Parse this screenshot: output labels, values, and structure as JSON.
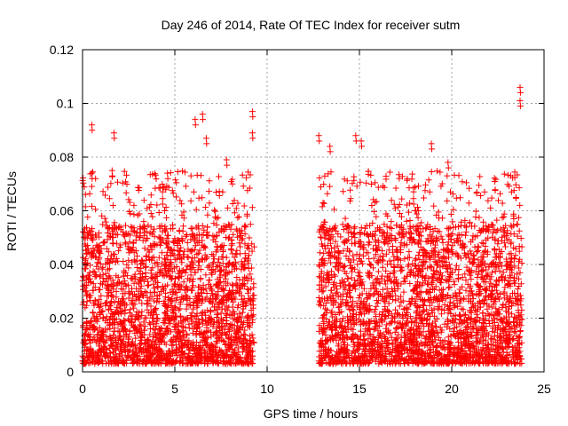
{
  "chart_data": {
    "type": "scatter",
    "title": "Day 246 of 2014, Rate Of TEC Index for receiver sutm",
    "xlabel": "GPS time / hours",
    "ylabel": "ROTI / TECUs",
    "xlim": [
      0,
      25
    ],
    "ylim": [
      0,
      0.12
    ],
    "xticks": [
      0,
      5,
      10,
      15,
      20,
      25
    ],
    "xtick_labels": [
      "0",
      "5",
      "10",
      "15",
      "20",
      "25"
    ],
    "yticks": [
      0,
      0.02,
      0.04,
      0.06,
      0.08,
      0.1,
      0.12
    ],
    "ytick_labels": [
      "0",
      "0.02",
      "0.04",
      "0.06",
      "0.08",
      "0.1",
      "0.12"
    ],
    "grid": true,
    "marker": "+",
    "marker_color": "#ff0000",
    "series": [
      {
        "name": "ROTI",
        "segments": [
          {
            "x_range": [
              0.0,
              9.3
            ],
            "y_min": 0.003,
            "y_typical_max": 0.055
          },
          {
            "x_range": [
              12.8,
              23.8
            ],
            "y_min": 0.003,
            "y_typical_max": 0.055
          }
        ],
        "notable_points": [
          {
            "x": 0.5,
            "y": 0.092
          },
          {
            "x": 1.7,
            "y": 0.089
          },
          {
            "x": 1.6,
            "y": 0.075
          },
          {
            "x": 0.5,
            "y": 0.074
          },
          {
            "x": 4.6,
            "y": 0.074
          },
          {
            "x": 6.1,
            "y": 0.094
          },
          {
            "x": 6.5,
            "y": 0.096
          },
          {
            "x": 6.7,
            "y": 0.087
          },
          {
            "x": 7.8,
            "y": 0.079
          },
          {
            "x": 9.2,
            "y": 0.097
          },
          {
            "x": 9.2,
            "y": 0.089
          },
          {
            "x": 12.8,
            "y": 0.088
          },
          {
            "x": 13.4,
            "y": 0.084
          },
          {
            "x": 14.8,
            "y": 0.088
          },
          {
            "x": 15.1,
            "y": 0.086
          },
          {
            "x": 18.9,
            "y": 0.085
          },
          {
            "x": 19.8,
            "y": 0.078
          },
          {
            "x": 23.7,
            "y": 0.106
          },
          {
            "x": 23.7,
            "y": 0.101
          }
        ]
      }
    ]
  }
}
